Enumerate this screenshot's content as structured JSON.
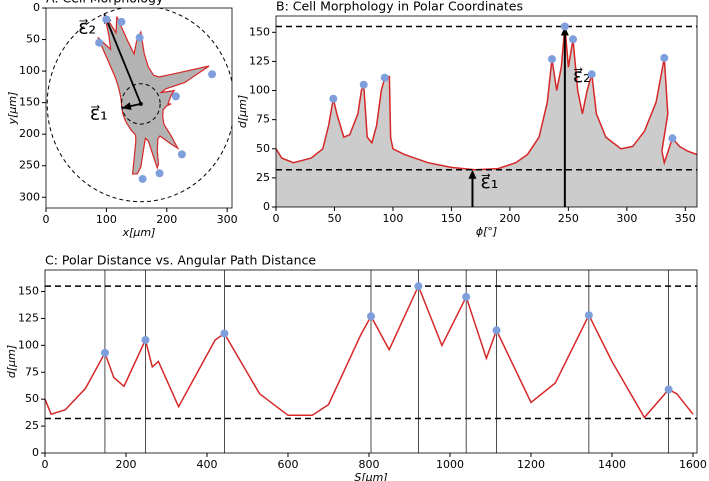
{
  "chart_data": [
    {
      "type": "shape",
      "title": "A: Cell Morphology",
      "xlabel": "x[μm]",
      "ylabel": "y[μm]",
      "xlim": [
        0,
        308
      ],
      "ylim": [
        317,
        0
      ],
      "xticks": [
        0,
        100,
        200,
        300
      ],
      "yticks": [
        0,
        50,
        100,
        150,
        200,
        250,
        300
      ],
      "center": [
        157,
        152
      ],
      "circles": [
        32,
        155
      ],
      "points": {
        "x": [
          100,
          125,
          155,
          88,
          275,
          215,
          225,
          188,
          160
        ],
        "y": [
          18,
          22,
          47,
          55,
          105,
          140,
          232,
          262,
          271
        ]
      },
      "color": "#d62728",
      "fill": "#b3b3b3",
      "point_color": "#7f9fdc",
      "annotations": [
        "ε⃗₂",
        "ε⃗₁"
      ]
    },
    {
      "type": "area",
      "title": "B: Cell Morphology in Polar Coordinates",
      "xlabel": "ϕ[°]",
      "ylabel": "d[μm]",
      "xlim": [
        0,
        360
      ],
      "ylim": [
        0,
        164
      ],
      "xticks": [
        0,
        50,
        100,
        150,
        200,
        250,
        300,
        350
      ],
      "yticks": [
        0,
        25,
        50,
        75,
        100,
        125,
        150
      ],
      "x": [
        0,
        5,
        15,
        30,
        40,
        45,
        49,
        52,
        58,
        63,
        70,
        73,
        75,
        78,
        82,
        86,
        90,
        93,
        97,
        98,
        100,
        110,
        130,
        150,
        170,
        190,
        205,
        215,
        225,
        232,
        236,
        240,
        244,
        247,
        250,
        254,
        258,
        262,
        266,
        270,
        274,
        282,
        295,
        305,
        315,
        325,
        332,
        335,
        330,
        332,
        339,
        345,
        352,
        360
      ],
      "values": [
        50,
        42,
        38,
        42,
        50,
        70,
        93,
        80,
        60,
        62,
        80,
        100,
        105,
        60,
        55,
        70,
        100,
        111,
        112,
        60,
        50,
        45,
        38,
        34,
        32,
        33,
        38,
        45,
        60,
        90,
        127,
        100,
        120,
        155,
        120,
        144,
        100,
        80,
        100,
        114,
        80,
        60,
        50,
        52,
        65,
        90,
        128,
        80,
        48,
        38,
        59,
        52,
        48,
        45
      ],
      "hlines": [
        32,
        155
      ],
      "arrow_x": [
        168,
        247
      ],
      "peaks": {
        "x": [
          49,
          75,
          93,
          236,
          247,
          254,
          270,
          332,
          339
        ],
        "y": [
          93,
          105,
          111,
          127,
          155,
          144,
          114,
          128,
          59
        ]
      },
      "annotations": [
        "ε⃗₁",
        "ε⃗₂"
      ],
      "color": "#d62728",
      "fill": "#cccccc",
      "point_color": "#7f9fdc"
    },
    {
      "type": "line",
      "title": "C: Polar Distance vs. Angular Path Distance",
      "xlabel": "S[μm]",
      "ylabel": "d[μm]",
      "xlim": [
        0,
        1610
      ],
      "ylim": [
        0,
        170
      ],
      "xticks": [
        0,
        200,
        400,
        600,
        800,
        1000,
        1200,
        1400,
        1600
      ],
      "yticks": [
        0,
        25,
        50,
        75,
        100,
        125,
        150
      ],
      "x": [
        0,
        15,
        50,
        100,
        148,
        170,
        195,
        248,
        265,
        280,
        330,
        420,
        443,
        460,
        530,
        600,
        660,
        700,
        780,
        805,
        850,
        922,
        980,
        1040,
        1090,
        1115,
        1200,
        1260,
        1343,
        1400,
        1480,
        1540,
        1560,
        1600
      ],
      "values": [
        50,
        36,
        40,
        60,
        93,
        70,
        62,
        105,
        80,
        85,
        43,
        105,
        111,
        100,
        55,
        35,
        35,
        45,
        110,
        127,
        96,
        155,
        100,
        145,
        88,
        114,
        47,
        65,
        128,
        85,
        33,
        59,
        55,
        36
      ],
      "hlines": [
        32,
        155
      ],
      "peaks": {
        "x": [
          148,
          248,
          443,
          805,
          922,
          1040,
          1115,
          1343,
          1540
        ],
        "y": [
          93,
          105,
          111,
          127,
          155,
          145,
          114,
          128,
          59
        ]
      },
      "color": "#d62728",
      "point_color": "#7f9fdc"
    }
  ]
}
